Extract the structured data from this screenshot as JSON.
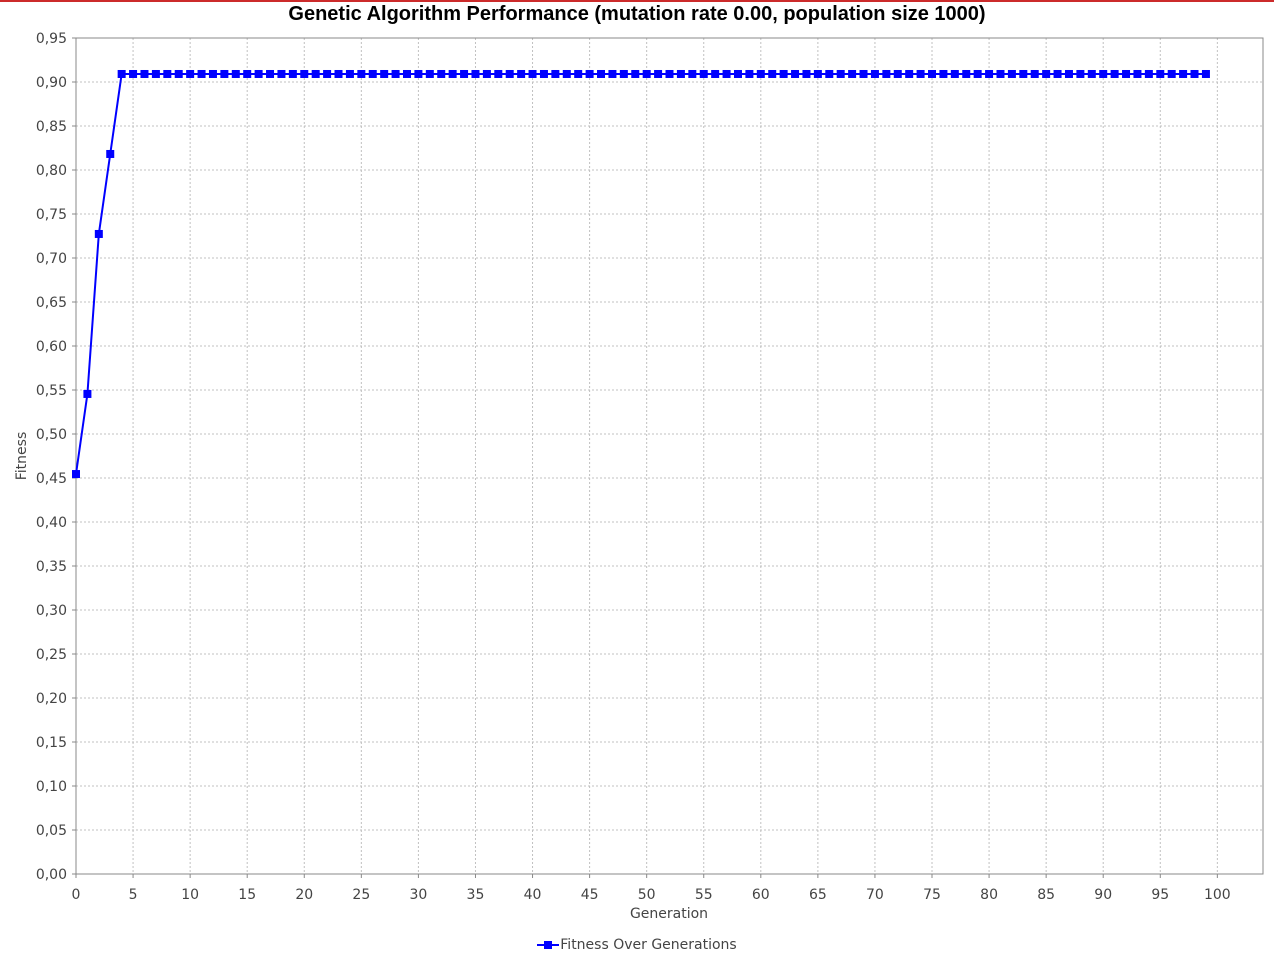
{
  "chart_data": {
    "type": "line",
    "title": "Genetic Algorithm Performance (mutation rate 0.00, population size 1000)",
    "xlabel": "Generation",
    "ylabel": "Fitness",
    "xlim": [
      0,
      104
    ],
    "ylim": [
      0,
      0.95
    ],
    "x_ticks": [
      "0",
      "5",
      "10",
      "15",
      "20",
      "25",
      "30",
      "35",
      "40",
      "45",
      "50",
      "55",
      "60",
      "65",
      "70",
      "75",
      "80",
      "85",
      "90",
      "95",
      "100"
    ],
    "y_ticks": [
      "0,00",
      "0,05",
      "0,10",
      "0,15",
      "0,20",
      "0,25",
      "0,30",
      "0,35",
      "0,40",
      "0,45",
      "0,50",
      "0,55",
      "0,60",
      "0,65",
      "0,70",
      "0,75",
      "0,80",
      "0,85",
      "0,90",
      "0,95"
    ],
    "grid": true,
    "legend_position": "bottom-center",
    "series": [
      {
        "name": "Fitness Over Generations",
        "color": "#0000ff",
        "marker": "square",
        "x": [
          0,
          1,
          2,
          3,
          4,
          5,
          6,
          7,
          8,
          9,
          10,
          11,
          12,
          13,
          14,
          15,
          16,
          17,
          18,
          19,
          20,
          21,
          22,
          23,
          24,
          25,
          26,
          27,
          28,
          29,
          30,
          31,
          32,
          33,
          34,
          35,
          36,
          37,
          38,
          39,
          40,
          41,
          42,
          43,
          44,
          45,
          46,
          47,
          48,
          49,
          50,
          51,
          52,
          53,
          54,
          55,
          56,
          57,
          58,
          59,
          60,
          61,
          62,
          63,
          64,
          65,
          66,
          67,
          68,
          69,
          70,
          71,
          72,
          73,
          74,
          75,
          76,
          77,
          78,
          79,
          80,
          81,
          82,
          83,
          84,
          85,
          86,
          87,
          88,
          89,
          90,
          91,
          92,
          93,
          94,
          95,
          96,
          97,
          98,
          99
        ],
        "y": [
          0.4545,
          0.5455,
          0.7273,
          0.8182,
          0.9091,
          0.9091,
          0.9091,
          0.9091,
          0.9091,
          0.9091,
          0.9091,
          0.9091,
          0.9091,
          0.9091,
          0.9091,
          0.9091,
          0.9091,
          0.9091,
          0.9091,
          0.9091,
          0.9091,
          0.9091,
          0.9091,
          0.9091,
          0.9091,
          0.9091,
          0.9091,
          0.9091,
          0.9091,
          0.9091,
          0.9091,
          0.9091,
          0.9091,
          0.9091,
          0.9091,
          0.9091,
          0.9091,
          0.9091,
          0.9091,
          0.9091,
          0.9091,
          0.9091,
          0.9091,
          0.9091,
          0.9091,
          0.9091,
          0.9091,
          0.9091,
          0.9091,
          0.9091,
          0.9091,
          0.9091,
          0.9091,
          0.9091,
          0.9091,
          0.9091,
          0.9091,
          0.9091,
          0.9091,
          0.9091,
          0.9091,
          0.9091,
          0.9091,
          0.9091,
          0.9091,
          0.9091,
          0.9091,
          0.9091,
          0.9091,
          0.9091,
          0.9091,
          0.9091,
          0.9091,
          0.9091,
          0.9091,
          0.9091,
          0.9091,
          0.9091,
          0.9091,
          0.9091,
          0.9091,
          0.9091,
          0.9091,
          0.9091,
          0.9091,
          0.9091,
          0.9091,
          0.9091,
          0.9091,
          0.9091,
          0.9091,
          0.9091,
          0.9091,
          0.9091,
          0.9091,
          0.9091,
          0.9091,
          0.9091,
          0.9091,
          0.9091
        ]
      }
    ]
  }
}
